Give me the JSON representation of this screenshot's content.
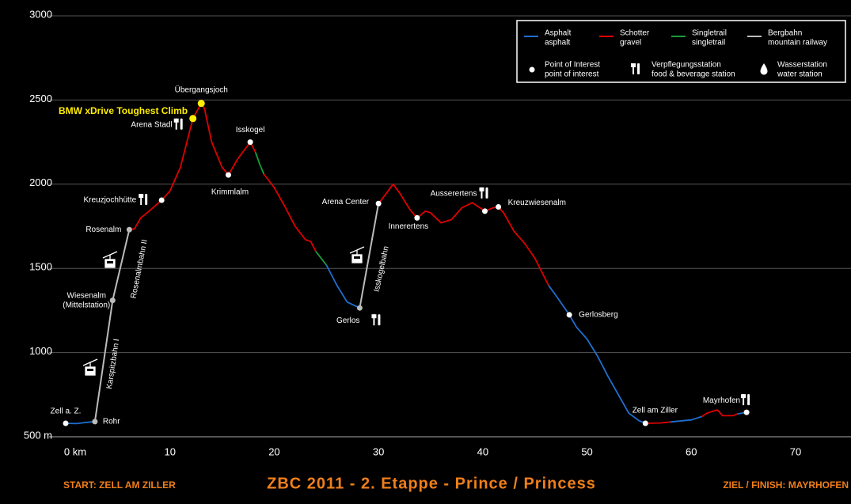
{
  "chart_data": {
    "type": "line",
    "title": "ZBC 2011 - 2. Etappe - Prince / Princess",
    "start_label": "START:  ZELL AM ZILLER",
    "finish_label": "ZIEL / FINISH:  MAYRHOFEN",
    "annotation": "BMW xDrive Toughest Climb",
    "xlim": [
      0,
      70
    ],
    "xticks": [
      {
        "value": 0,
        "label": "0 km"
      },
      10,
      20,
      30,
      40,
      50,
      60,
      70
    ],
    "ylim": [
      500,
      3000
    ],
    "yticks": [
      {
        "value": 500,
        "label": "500 m"
      },
      1000,
      1500,
      2000,
      2500,
      3000
    ],
    "grid": true,
    "legend": "upper right",
    "series": [
      {
        "name": "Asphalt",
        "subname": "asphalt",
        "color": "#1f6fd0",
        "x": [
          0,
          1,
          2,
          2.8,
          null,
          25,
          26,
          27,
          28.2,
          null,
          46.3,
          47,
          48.3,
          49,
          50,
          51,
          52,
          53,
          54,
          55,
          55.6,
          null,
          58,
          60,
          61,
          null,
          64.4,
          65.3
        ],
        "values": [
          580,
          578,
          585,
          590,
          null,
          1520,
          1400,
          1300,
          1265,
          null,
          1400,
          1340,
          1224,
          1150,
          1080,
          980,
          860,
          750,
          640,
          595,
          580,
          null,
          588,
          600,
          620,
          null,
          635,
          645
        ]
      },
      {
        "name": "Schotter",
        "subname": "gravel",
        "color": "#e00000",
        "x": [
          6.1,
          6.6,
          7.2,
          8,
          9.2,
          10,
          11,
          12.2,
          13,
          13.3,
          14,
          15,
          15.6,
          16.5,
          17.7,
          18.2,
          null,
          19,
          20,
          21,
          22,
          23,
          23.5,
          24,
          null,
          30,
          30.8,
          31.4,
          32,
          33,
          33.7,
          34.5,
          35,
          36,
          37,
          38,
          39,
          40.2,
          41,
          41.5,
          42,
          43,
          44,
          45,
          46.3,
          null,
          55.6,
          57,
          58,
          null,
          61,
          61.5,
          62.5,
          63,
          64,
          64.4
        ],
        "values": [
          1730,
          1735,
          1800,
          1840,
          1905,
          1960,
          2100,
          2390,
          2480,
          2450,
          2250,
          2100,
          2055,
          2150,
          2250,
          2190,
          null,
          2060,
          1980,
          1870,
          1750,
          1670,
          1660,
          1600,
          null,
          1885,
          1950,
          2000,
          1950,
          1850,
          1800,
          1840,
          1830,
          1770,
          1790,
          1860,
          1890,
          1840,
          1860,
          1865,
          1830,
          1720,
          1650,
          1560,
          1400,
          null,
          580,
          582,
          588,
          null,
          620,
          640,
          660,
          625,
          625,
          635
        ]
      },
      {
        "name": "Singletrail",
        "subname": "singletrail",
        "color": "#1a9e3a",
        "x": [
          18.2,
          18.6,
          19,
          null,
          24,
          24.5,
          25
        ],
        "values": [
          2190,
          2120,
          2060,
          null,
          1600,
          1560,
          1520
        ]
      },
      {
        "name": "Bergbahn",
        "subname": "mountain railway",
        "color": "#bbbbbb",
        "x": [
          2.8,
          4.5,
          6.1,
          null,
          28.2,
          30
        ],
        "values": [
          590,
          1310,
          1730,
          null,
          1265,
          1885
        ]
      }
    ],
    "legend_markers": [
      {
        "name": "Point of Interest",
        "subname": "point of interest"
      },
      {
        "name": "Verpflegungsstation",
        "subname": "food & beverage station"
      },
      {
        "name": "Wasserstation",
        "subname": "water station"
      }
    ],
    "lift_labels": [
      "Karspitzbahn I",
      "Rosenalmbahn II",
      "Isskogelbahn"
    ],
    "pois": [
      {
        "label": "Zell a. Z.",
        "x": 0,
        "y": 580,
        "color": "#ffffff"
      },
      {
        "label": "Rohr",
        "x": 2.8,
        "y": 590,
        "color": "#bbbbbb"
      },
      {
        "label": "Wiesenalm",
        "sublabel": "(Mittelstation)",
        "x": 4.5,
        "y": 1310,
        "color": "#bbbbbb"
      },
      {
        "label": "Rosenalm",
        "x": 6.1,
        "y": 1730,
        "color": "#bbbbbb"
      },
      {
        "label": "Kreuzjochhütte",
        "x": 9.2,
        "y": 1905,
        "color": "#ffffff",
        "food": true
      },
      {
        "label": "Arena Stadl",
        "x": 12.2,
        "y": 2390,
        "color": "#ffee00",
        "food": true
      },
      {
        "label": "Übergangsjoch",
        "x": 13,
        "y": 2480,
        "color": "#ffee00"
      },
      {
        "label": "Krimmlalm",
        "x": 15.6,
        "y": 2055,
        "color": "#ffffff"
      },
      {
        "label": "Isskogel",
        "x": 17.7,
        "y": 2250,
        "color": "#ffffff"
      },
      {
        "label": "Gerlos",
        "x": 28.2,
        "y": 1265,
        "color": "#bbbbbb",
        "food": true
      },
      {
        "label": "Arena Center",
        "x": 30,
        "y": 1885,
        "color": "#ffffff"
      },
      {
        "label": "Innerertens",
        "x": 33.7,
        "y": 1800,
        "color": "#ffffff"
      },
      {
        "label": "Ausserertens",
        "x": 40.2,
        "y": 1840,
        "color": "#ffffff",
        "food": true
      },
      {
        "label": "Kreuzwiesenalm",
        "x": 41.5,
        "y": 1865,
        "color": "#ffffff"
      },
      {
        "label": "Gerlosberg",
        "x": 48.3,
        "y": 1224,
        "color": "#ffffff"
      },
      {
        "label": "Zell am Ziller",
        "x": 55.6,
        "y": 580,
        "color": "#ffffff"
      },
      {
        "label": "Mayrhofen",
        "x": 65.3,
        "y": 645,
        "color": "#ffffff",
        "food": true
      }
    ]
  }
}
